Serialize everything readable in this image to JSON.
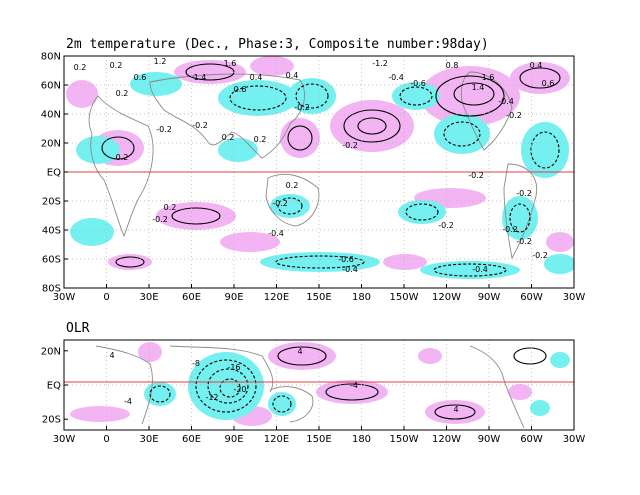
{
  "figure": {
    "main_title": "2m temperature (Dec., Phase:3, Composite number:98day)",
    "sub_title": "OLR"
  },
  "colors": {
    "positive_shade": "#f3b4f3",
    "negative_shade": "#74f0f0",
    "equator_line": "#e04040",
    "coastline": "#8a8a8a",
    "grid": "#b0b0b0",
    "contour": "#000000"
  },
  "top_panel": {
    "x_ticks": [
      "30W",
      "0",
      "30E",
      "60E",
      "90E",
      "120E",
      "150E",
      "180",
      "150W",
      "120W",
      "90W",
      "60W",
      "30W"
    ],
    "y_ticks": [
      "80N",
      "60N",
      "40N",
      "20N",
      "EQ",
      "20S",
      "40S",
      "60S",
      "80S"
    ],
    "contour_labels": [
      "0.2",
      "0.6",
      "0.2",
      "1.2",
      "1.4",
      "1.6",
      "0.6",
      "0.4",
      "0.2",
      "0.4",
      "-0.2",
      "-1.2",
      "-0.4",
      "-0.6",
      "0.8",
      "1.6",
      "1.4",
      "-0.4",
      "-0.2",
      "0.4",
      "0.6",
      "-0.2",
      "0.2",
      "-0.2",
      "-0.2",
      "0.2",
      "0.2",
      "-0.2",
      "0.2",
      "-0.2",
      "-0.4",
      "0.2",
      "-0.2",
      "-0.2",
      "-0.4",
      "-0.2",
      "-0.2",
      "-0.4",
      "-0.2",
      "-0.6",
      "-0.2"
    ]
  },
  "bottom_panel": {
    "x_ticks": [
      "30W",
      "0",
      "30E",
      "60E",
      "90E",
      "120E",
      "150E",
      "180",
      "150W",
      "120W",
      "90W",
      "60W",
      "30W"
    ],
    "y_ticks": [
      "20N",
      "EQ",
      "20S"
    ],
    "contour_labels": [
      "4",
      "-4",
      "-8",
      "-16",
      "-20",
      "-12",
      "4",
      "-4",
      "4"
    ]
  }
}
